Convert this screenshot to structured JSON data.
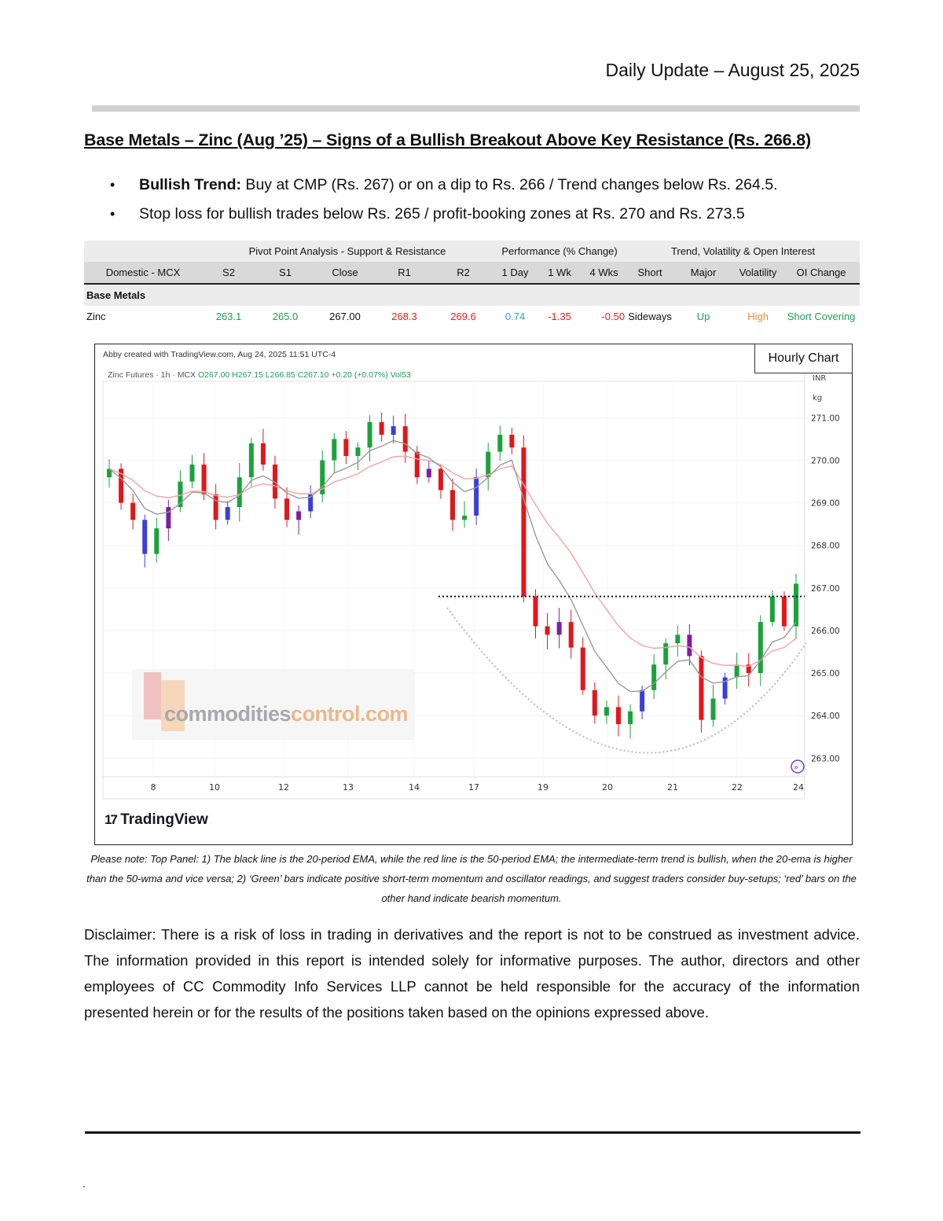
{
  "header": {
    "date": "Daily Update – August 25, 2025",
    "headline": "Base Metals – Zinc (Aug  ’25) – Signs of a Bullish Breakout Above Key Resistance (Rs. 266.8)"
  },
  "bullets": [
    {
      "bold": "Bullish Trend:",
      "text": " Buy at CMP (Rs. 267) or on a dip to Rs. 266 / Trend changes below Rs. 264.5."
    },
    {
      "bold": "",
      "text": "Stop loss for bullish trades below Rs. 265 / profit-booking zones at Rs. 270 and Rs. 273.5"
    }
  ],
  "table": {
    "groups": {
      "pivot": "Pivot Point Analysis - Support & Resistance",
      "performance": "Performance (% Change)",
      "trend": "Trend, Volatility & Open Interest"
    },
    "headers": [
      "Domestic - MCX",
      "S2",
      "S1",
      "Close",
      "R1",
      "R2",
      "1 Day",
      "1 Wk",
      "4 Wks",
      "Short",
      "Major",
      "Volatility",
      "OI Change"
    ],
    "section": "Base Metals",
    "row": [
      "Zinc",
      "263.1",
      "265.0",
      "267.00",
      "268.3",
      "269.6",
      "0.74",
      "-1.35",
      "-0.50",
      "Sideways",
      "Up",
      "High",
      "Short Covering"
    ]
  },
  "chart": {
    "badge": "Hourly Chart",
    "created": "Abby created with TradingView.com, Aug 24, 2025 11:51 UTC-4",
    "symbol": "Zinc Futures · 1h · MCX",
    "ohlc_o": "O267.00",
    "ohlc_h": "H267.15",
    "ohlc_l": "L266.85",
    "ohlc_c": "C267.10",
    "change": "+0.20 (+0.07%)",
    "vol": "Vol53",
    "unit_currency": "INR",
    "unit_weight": "kg",
    "brand": "TradingView",
    "watermark_a": "commodities",
    "watermark_b": "control.com"
  },
  "chart_data": {
    "type": "candlestick",
    "title": "",
    "x_tick_labels": [
      "8",
      "10",
      "12",
      "13",
      "14",
      "17",
      "19",
      "20",
      "21",
      "22",
      "24"
    ],
    "y_tick_labels": [
      "271.00",
      "270.00",
      "269.00",
      "268.00",
      "267.00",
      "266.00",
      "265.00",
      "264.00",
      "263.00"
    ],
    "ylim": [
      262.6,
      271.8
    ],
    "resistance_level": 266.8,
    "series": [
      {
        "name": "20-period EMA",
        "color": "#9a9a9a"
      },
      {
        "name": "50-period EMA",
        "color": "#f2a4a4"
      }
    ],
    "close_path": [
      269.8,
      269.0,
      268.6,
      267.8,
      268.4,
      268.9,
      269.5,
      269.9,
      269.2,
      268.6,
      268.9,
      269.6,
      270.4,
      269.9,
      269.1,
      268.6,
      268.8,
      269.2,
      270.0,
      270.5,
      270.1,
      270.3,
      270.9,
      270.6,
      270.8,
      270.2,
      269.6,
      269.8,
      269.3,
      268.6,
      268.7,
      269.6,
      270.2,
      270.6,
      270.3,
      266.8,
      266.1,
      265.9,
      266.2,
      265.6,
      264.6,
      264.0,
      264.2,
      263.8,
      264.1,
      264.6,
      265.2,
      265.7,
      265.9,
      265.4,
      263.9,
      264.4,
      264.9,
      265.2,
      265.0,
      266.2,
      266.8,
      266.1,
      267.1
    ]
  },
  "note": "Please note: Top Panel: 1) The black line is the 20-period EMA, while the red line is the 50-period EMA; the intermediate-term trend is bullish, when the 20-ema is higher than the 50-wma and vice versa; 2)  ‘Green’  bars indicate positive short-term momentum and oscillator readings, and suggest traders consider buy-setups;  ‘red’  bars on the other hand indicate bearish momentum.",
  "disclaimer": "Disclaimer: There is a risk of loss in trading in derivatives and the report is not to be construed as investment advice. The information provided in this report is intended solely for informative purposes. The author, directors and other employees of CC Commodity Info Services LLP cannot be held responsible for the accuracy of the information presented herein or for the results of the positions taken based on the opinions expressed above.",
  "footer_dot": "."
}
